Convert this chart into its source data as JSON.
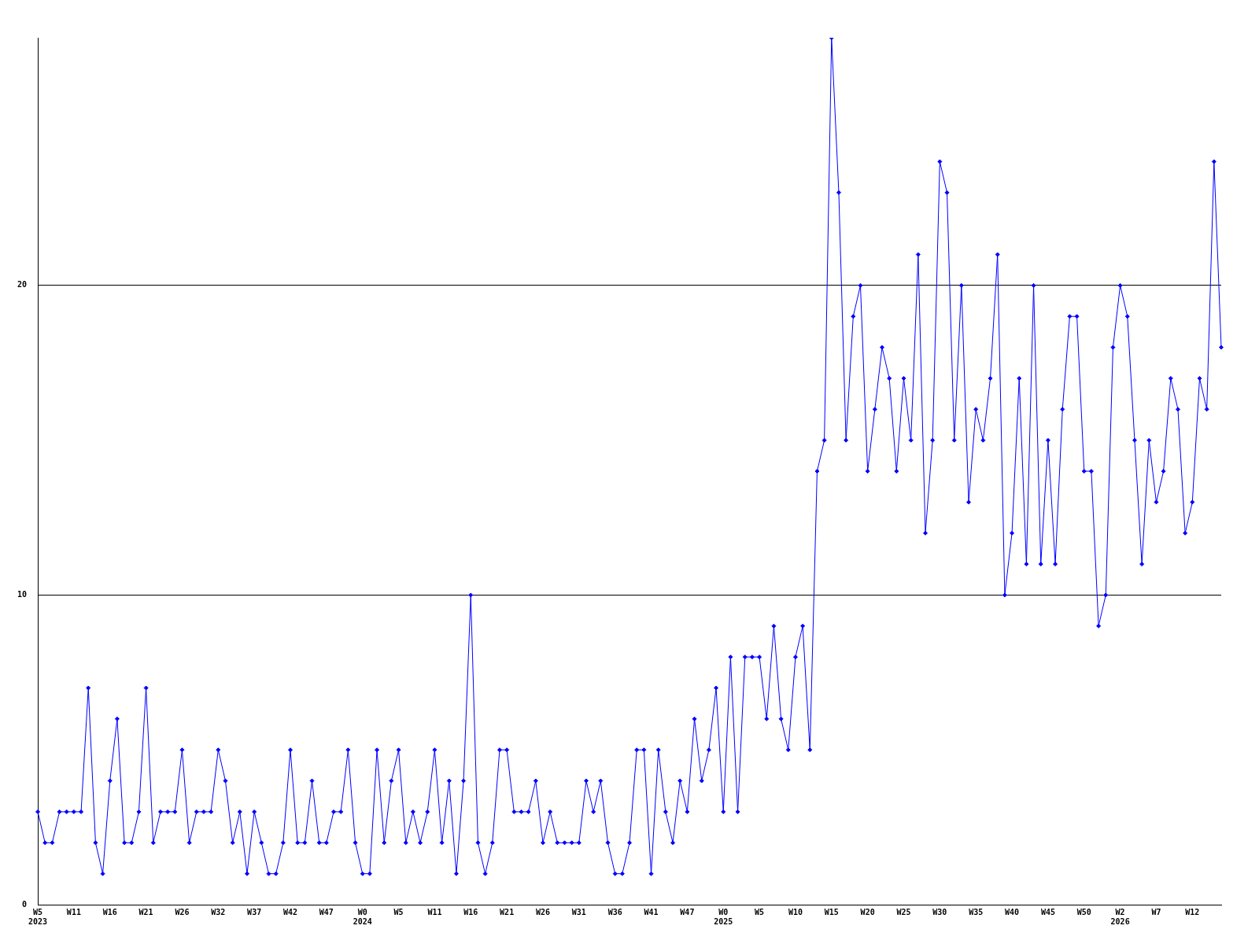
{
  "chart_data": {
    "type": "line",
    "categories": [
      "W5\n2023",
      null,
      null,
      null,
      null,
      "W11",
      null,
      null,
      null,
      null,
      "W16",
      null,
      null,
      null,
      null,
      "W21",
      null,
      null,
      null,
      null,
      "W26",
      null,
      null,
      null,
      null,
      "W32",
      null,
      null,
      null,
      null,
      "W37",
      null,
      null,
      null,
      null,
      "W42",
      null,
      null,
      null,
      null,
      "W47",
      null,
      null,
      null,
      null,
      "W0\n2024",
      null,
      null,
      null,
      null,
      "W5",
      null,
      null,
      null,
      null,
      "W11",
      null,
      null,
      null,
      null,
      "W16",
      null,
      null,
      null,
      null,
      "W21",
      null,
      null,
      null,
      null,
      "W26",
      null,
      null,
      null,
      null,
      "W31",
      null,
      null,
      null,
      null,
      "W36",
      null,
      null,
      null,
      null,
      "W41",
      null,
      null,
      null,
      null,
      "W47",
      null,
      null,
      null,
      null,
      "W0\n2025",
      null,
      null,
      null,
      null,
      "W5",
      null,
      null,
      null,
      null,
      "W10",
      null,
      null,
      null,
      null,
      "W15",
      null,
      null,
      null,
      null,
      "W20",
      null,
      null,
      null,
      null,
      "W25",
      null,
      null,
      null,
      null,
      "W30",
      null,
      null,
      null,
      null,
      "W35",
      null,
      null,
      null,
      null,
      "W40",
      null,
      null,
      null,
      null,
      "W45",
      null,
      null,
      null,
      null,
      "W50",
      null,
      null,
      null,
      null,
      "W2\n2026",
      null,
      null,
      null,
      null,
      "W7",
      null,
      null,
      null,
      null,
      "W12",
      null,
      null,
      null,
      null
    ],
    "series": [
      {
        "color": "#0000ff",
        "values": [
          3,
          2,
          2,
          3,
          3,
          3,
          3,
          7,
          2,
          1,
          4,
          6,
          2,
          2,
          3,
          7,
          2,
          3,
          3,
          3,
          5,
          2,
          3,
          3,
          3,
          5,
          4,
          2,
          3,
          1,
          3,
          2,
          1,
          1,
          2,
          5,
          2,
          2,
          4,
          2,
          2,
          3,
          3,
          5,
          2,
          1,
          1,
          5,
          2,
          4,
          5,
          2,
          3,
          2,
          3,
          5,
          2,
          4,
          1,
          4,
          10,
          2,
          1,
          2,
          5,
          5,
          3,
          3,
          3,
          4,
          2,
          3,
          2,
          2,
          2,
          2,
          4,
          3,
          4,
          2,
          1,
          1,
          2,
          5,
          5,
          1,
          5,
          3,
          2,
          4,
          3,
          6,
          4,
          5,
          7,
          3,
          8,
          3,
          8,
          8,
          8,
          6,
          9,
          6,
          5,
          8,
          9,
          5,
          14,
          15,
          28,
          23,
          15,
          19,
          20,
          14,
          16,
          18,
          17,
          14,
          17,
          15,
          21,
          12,
          15,
          24,
          23,
          15,
          20,
          13,
          16,
          15,
          17,
          21,
          10,
          12,
          17,
          11,
          20,
          11,
          15,
          11,
          16,
          19,
          19,
          14,
          14,
          9,
          10,
          18,
          20,
          19,
          15,
          11,
          15,
          13,
          14,
          17,
          16,
          12,
          13,
          17,
          16,
          24,
          18
        ]
      }
    ],
    "ylim": [
      0,
      28
    ],
    "yticks": [
      0,
      10,
      20
    ],
    "grid": "y",
    "marker": "diamond",
    "line_style": "solid"
  }
}
